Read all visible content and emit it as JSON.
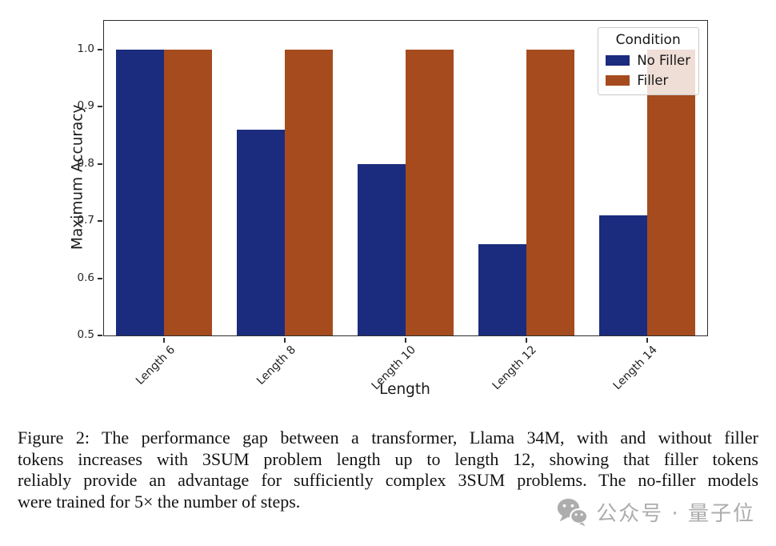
{
  "chart_data": {
    "type": "bar",
    "title": "",
    "categories": [
      "Length 6",
      "Length 8",
      "Length 10",
      "Length 12",
      "Length 14"
    ],
    "series": [
      {
        "name": "No Filler",
        "color": "#1b2b7d",
        "values": [
          1.0,
          0.86,
          0.8,
          0.66,
          0.71
        ]
      },
      {
        "name": "Filler",
        "color": "#a54b1e",
        "values": [
          1.0,
          1.0,
          1.0,
          1.0,
          1.0
        ]
      }
    ],
    "xlabel": "Length",
    "ylabel": "Maximum Accuracy",
    "ylim": [
      0.5,
      1.05
    ],
    "yticks": [
      0.5,
      0.6,
      0.7,
      0.8,
      0.9,
      1.0
    ],
    "legend": {
      "title": "Condition",
      "position": "upper right"
    },
    "grid": false
  },
  "caption": {
    "lines": [
      "Figure 2: The performance gap between a transformer, Llama 34M, with and without filler",
      "tokens increases with 3SUM problem length up to length 12, showing that filler tokens",
      "reliably provide an advantage for sufficiently complex 3SUM problems. The no-filler models",
      "were trained for 5× the number of steps."
    ]
  },
  "watermark": {
    "icon": "wechat-icon",
    "text": "公众号 · 量子位"
  }
}
